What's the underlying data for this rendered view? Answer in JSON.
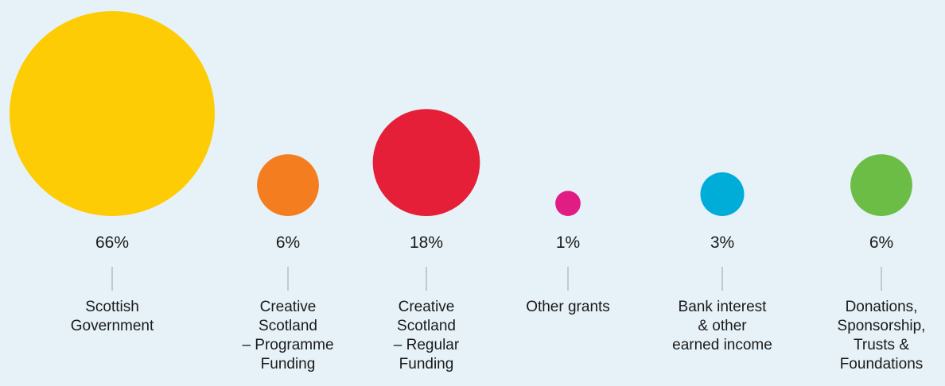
{
  "chart_data": {
    "type": "bubble",
    "categories": [
      "Scottish\nGovernment",
      "Creative\nScotland\n– Programme\nFunding",
      "Creative\nScotland\n– Regular\nFunding",
      "Other grants",
      "Bank interest\n& other\nearned income",
      "Donations,\nSponsorship,\nTrusts &\nFoundations"
    ],
    "values": [
      66,
      6,
      18,
      1,
      3,
      6
    ],
    "value_labels": [
      "66%",
      "6%",
      "18%",
      "1%",
      "3%",
      "6%"
    ],
    "colors": [
      "#fecc05",
      "#f47d20",
      "#e51f38",
      "#e11d84",
      "#00add8",
      "#6cbd45"
    ],
    "unit": "%"
  }
}
